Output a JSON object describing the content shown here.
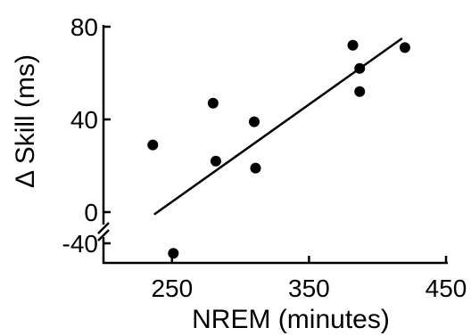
{
  "chart_data": {
    "type": "scatter",
    "title": "",
    "xlabel": "NREM (minutes)",
    "ylabel": "Δ Skill (ms)",
    "xlim": [
      200,
      450
    ],
    "ylim": [
      -40,
      80
    ],
    "y_axis_break": [
      -40,
      0
    ],
    "x_ticks": [
      250,
      350,
      450
    ],
    "x_tick_labels": [
      "250",
      "350",
      "450"
    ],
    "y_ticks": [
      -40,
      0,
      40,
      80
    ],
    "y_tick_labels": [
      "-40",
      "0",
      "40",
      "80"
    ],
    "grid": false,
    "points": [
      {
        "x": 236,
        "y": 29
      },
      {
        "x": 251,
        "y": -47
      },
      {
        "x": 280,
        "y": 47
      },
      {
        "x": 282,
        "y": 22
      },
      {
        "x": 310,
        "y": 39
      },
      {
        "x": 311,
        "y": 19
      },
      {
        "x": 382,
        "y": 72
      },
      {
        "x": 387,
        "y": 62
      },
      {
        "x": 387,
        "y": 52
      },
      {
        "x": 420,
        "y": 71
      }
    ],
    "trend_line": {
      "x": [
        237,
        418
      ],
      "y": [
        -1,
        75
      ]
    }
  }
}
